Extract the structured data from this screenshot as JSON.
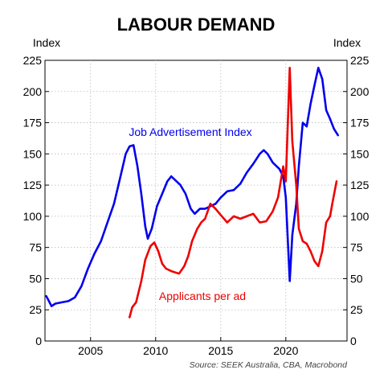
{
  "chart_data": {
    "type": "line",
    "title": "LABOUR DEMAND",
    "left_unit": "Index",
    "right_unit": "Index",
    "source": "Source: SEEK Australia, CBA, Macrobond",
    "xlim": [
      2001.5,
      2024.7
    ],
    "ylim": [
      0,
      225
    ],
    "yticks": [
      0,
      25,
      50,
      75,
      100,
      125,
      150,
      175,
      200,
      225
    ],
    "xticks": [
      2005,
      2010,
      2015,
      2020
    ],
    "grid": true,
    "legend": "inline labels",
    "series": [
      {
        "name": "Job Advertisement Index",
        "color": "#0000ee",
        "points": [
          [
            2001.6,
            36
          ],
          [
            2001.8,
            32
          ],
          [
            2002.0,
            28
          ],
          [
            2002.3,
            30
          ],
          [
            2002.8,
            31
          ],
          [
            2003.3,
            32
          ],
          [
            2003.8,
            35
          ],
          [
            2004.3,
            44
          ],
          [
            2004.8,
            58
          ],
          [
            2005.3,
            70
          ],
          [
            2005.8,
            80
          ],
          [
            2006.3,
            95
          ],
          [
            2006.8,
            110
          ],
          [
            2007.3,
            132
          ],
          [
            2007.7,
            150
          ],
          [
            2008.0,
            156
          ],
          [
            2008.3,
            157
          ],
          [
            2008.6,
            140
          ],
          [
            2008.9,
            118
          ],
          [
            2009.2,
            92
          ],
          [
            2009.4,
            82
          ],
          [
            2009.7,
            90
          ],
          [
            2010.1,
            108
          ],
          [
            2010.5,
            118
          ],
          [
            2010.9,
            128
          ],
          [
            2011.2,
            132
          ],
          [
            2011.5,
            129
          ],
          [
            2011.9,
            125
          ],
          [
            2012.3,
            118
          ],
          [
            2012.7,
            106
          ],
          [
            2013.0,
            102
          ],
          [
            2013.4,
            106
          ],
          [
            2013.8,
            106
          ],
          [
            2014.2,
            108
          ],
          [
            2014.6,
            110
          ],
          [
            2015.0,
            115
          ],
          [
            2015.5,
            120
          ],
          [
            2016.0,
            121
          ],
          [
            2016.5,
            126
          ],
          [
            2017.0,
            135
          ],
          [
            2017.5,
            142
          ],
          [
            2018.0,
            150
          ],
          [
            2018.3,
            153
          ],
          [
            2018.6,
            150
          ],
          [
            2019.0,
            143
          ],
          [
            2019.5,
            138
          ],
          [
            2019.8,
            132
          ],
          [
            2020.0,
            115
          ],
          [
            2020.3,
            48
          ],
          [
            2020.5,
            85
          ],
          [
            2020.8,
            110
          ],
          [
            2021.0,
            140
          ],
          [
            2021.3,
            175
          ],
          [
            2021.6,
            172
          ],
          [
            2021.9,
            190
          ],
          [
            2022.2,
            205
          ],
          [
            2022.5,
            219
          ],
          [
            2022.8,
            210
          ],
          [
            2023.1,
            185
          ],
          [
            2023.4,
            178
          ],
          [
            2023.7,
            170
          ],
          [
            2024.0,
            165
          ]
        ]
      },
      {
        "name": "Applicants per ad",
        "color": "#ee0000",
        "points": [
          [
            2008.0,
            19
          ],
          [
            2008.2,
            27
          ],
          [
            2008.5,
            31
          ],
          [
            2008.9,
            48
          ],
          [
            2009.2,
            65
          ],
          [
            2009.6,
            76
          ],
          [
            2009.9,
            79
          ],
          [
            2010.2,
            72
          ],
          [
            2010.5,
            62
          ],
          [
            2010.8,
            58
          ],
          [
            2011.2,
            56
          ],
          [
            2011.5,
            55
          ],
          [
            2011.8,
            54
          ],
          [
            2012.2,
            60
          ],
          [
            2012.5,
            68
          ],
          [
            2012.8,
            80
          ],
          [
            2013.2,
            90
          ],
          [
            2013.5,
            95
          ],
          [
            2013.8,
            98
          ],
          [
            2014.2,
            110
          ],
          [
            2014.6,
            106
          ],
          [
            2015.0,
            101
          ],
          [
            2015.5,
            95
          ],
          [
            2016.0,
            100
          ],
          [
            2016.5,
            98
          ],
          [
            2017.0,
            100
          ],
          [
            2017.5,
            102
          ],
          [
            2018.0,
            95
          ],
          [
            2018.5,
            96
          ],
          [
            2019.0,
            104
          ],
          [
            2019.4,
            115
          ],
          [
            2019.8,
            140
          ],
          [
            2020.0,
            128
          ],
          [
            2020.3,
            219
          ],
          [
            2020.5,
            160
          ],
          [
            2020.8,
            125
          ],
          [
            2021.0,
            90
          ],
          [
            2021.3,
            80
          ],
          [
            2021.6,
            78
          ],
          [
            2021.9,
            72
          ],
          [
            2022.2,
            64
          ],
          [
            2022.5,
            60
          ],
          [
            2022.8,
            72
          ],
          [
            2023.1,
            95
          ],
          [
            2023.4,
            100
          ],
          [
            2023.6,
            112
          ],
          [
            2023.9,
            128
          ]
        ]
      }
    ]
  }
}
